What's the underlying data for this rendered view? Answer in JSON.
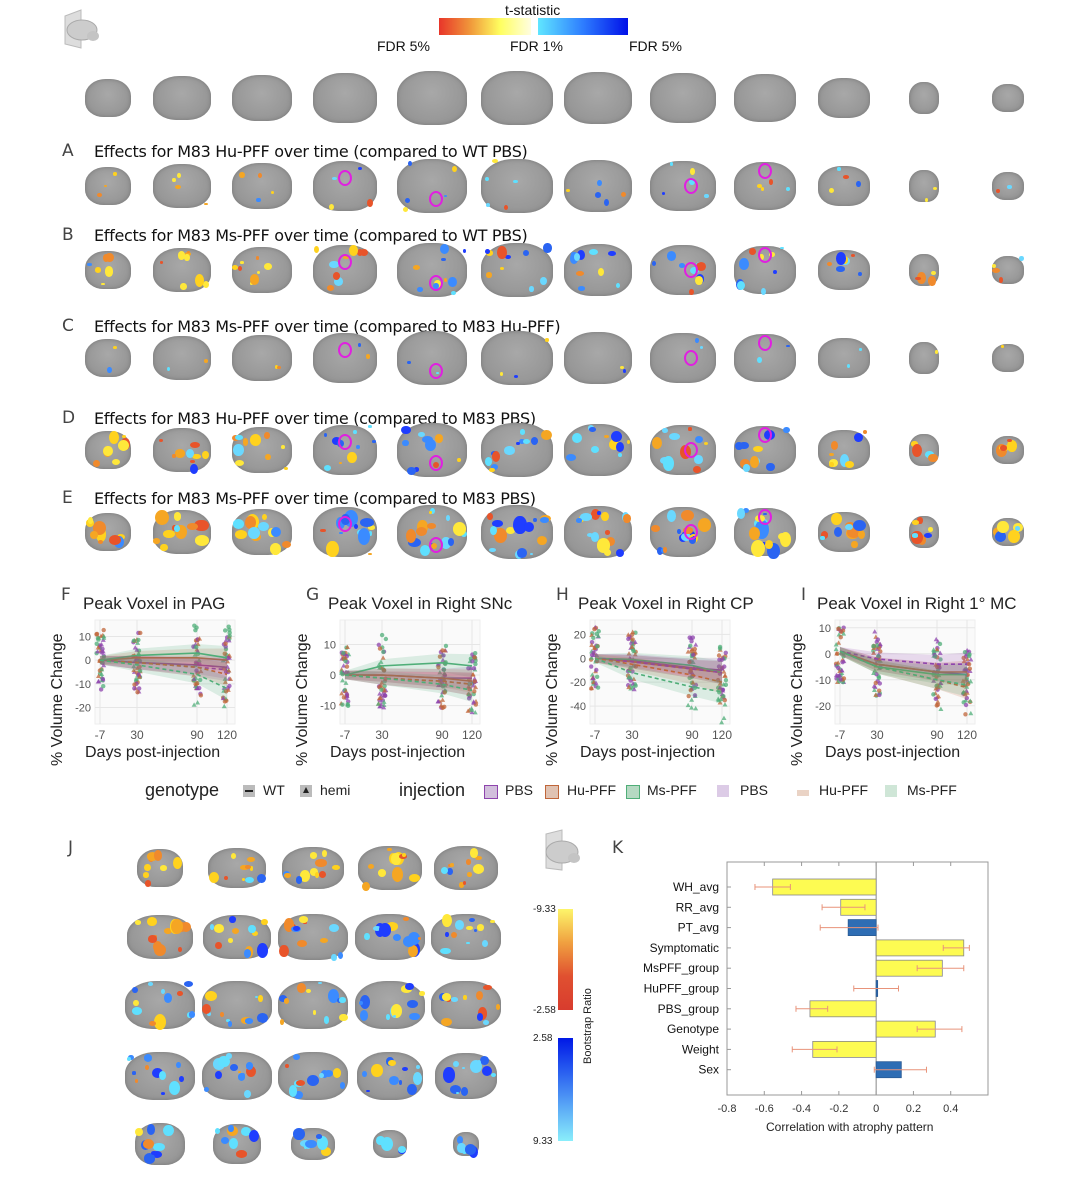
{
  "header": {
    "colorbar_title": "t-statistic",
    "labels": [
      "FDR 5%",
      "FDR 1%",
      "FDR 5%"
    ],
    "colors": {
      "warm_start": "#e8352a",
      "warm_end": "#ffff60",
      "cool_start": "#60e6ff",
      "cool_end": "#0010e8"
    }
  },
  "rows": [
    {
      "letter": "A",
      "title": "Effects for M83 Hu-PFF over time (compared to WT PBS)",
      "density": 0.3
    },
    {
      "letter": "B",
      "title": "Effects for M83 Ms-PFF over time (compared to WT PBS)",
      "density": 0.6
    },
    {
      "letter": "C",
      "title": "Effects for M83 Ms-PFF over time (compared to M83 Hu-PFF)",
      "density": 0.15
    },
    {
      "letter": "D",
      "title": "Effects for M83 Hu-PFF over time (compared to M83 PBS)",
      "density": 0.7
    },
    {
      "letter": "E",
      "title": "Effects for M83 Ms-PFF over time (compared to M83 PBS)",
      "density": 0.95
    }
  ],
  "chart_data": [
    {
      "type": "line",
      "letter": "F",
      "title": "Peak Voxel in PAG",
      "xlabel": "Days post-injection",
      "ylabel": "% Volume Change",
      "x": [
        -7,
        30,
        90,
        120
      ],
      "xticks": [
        "-7",
        "30",
        "90",
        "120"
      ],
      "yticks": [
        10,
        0,
        -10,
        -20
      ],
      "ylim": [
        -27,
        17
      ],
      "series": [
        {
          "name": "PBS WT",
          "values": [
            0,
            -1,
            -2,
            -3
          ]
        },
        {
          "name": "Hu-PFF WT",
          "values": [
            0,
            1,
            1,
            0
          ]
        },
        {
          "name": "Ms-PFF WT",
          "values": [
            0,
            2,
            3,
            1
          ]
        },
        {
          "name": "PBS hemi",
          "values": [
            0,
            -1,
            -3,
            -4
          ]
        },
        {
          "name": "Hu-PFF hemi",
          "values": [
            0,
            -1,
            -3,
            -6
          ]
        },
        {
          "name": "Ms-PFF hemi",
          "values": [
            0,
            -2,
            -6,
            -12
          ]
        }
      ]
    },
    {
      "type": "line",
      "letter": "G",
      "title": "Peak Voxel in Right SNc",
      "xlabel": "Days post-injection",
      "ylabel": "% Volume Change",
      "x": [
        -7,
        30,
        90,
        120
      ],
      "xticks": [
        "-7",
        "30",
        "90",
        "120"
      ],
      "yticks": [
        10,
        0,
        -10
      ],
      "ylim": [
        -16,
        18
      ],
      "series": [
        {
          "name": "PBS WT",
          "values": [
            0,
            0,
            -1,
            -1
          ]
        },
        {
          "name": "Hu-PFF WT",
          "values": [
            0,
            0,
            -1,
            -2
          ]
        },
        {
          "name": "Ms-PFF WT",
          "values": [
            0,
            3,
            4,
            3
          ]
        },
        {
          "name": "PBS hemi",
          "values": [
            0,
            -1,
            -2,
            -3
          ]
        },
        {
          "name": "Hu-PFF hemi",
          "values": [
            0,
            -1,
            -2,
            -3
          ]
        },
        {
          "name": "Ms-PFF hemi",
          "values": [
            0,
            -1,
            -3,
            -5
          ]
        }
      ]
    },
    {
      "type": "line",
      "letter": "H",
      "title": "Peak Voxel in Right CP",
      "xlabel": "Days post-injection",
      "ylabel": "% Volume Change",
      "x": [
        -7,
        30,
        90,
        120
      ],
      "xticks": [
        "-7",
        "30",
        "90",
        "120"
      ],
      "yticks": [
        20,
        0,
        -20,
        -40
      ],
      "ylim": [
        -55,
        32
      ],
      "series": [
        {
          "name": "PBS WT",
          "values": [
            0,
            -2,
            -8,
            -10
          ]
        },
        {
          "name": "Hu-PFF WT",
          "values": [
            0,
            -3,
            -9,
            -12
          ]
        },
        {
          "name": "Ms-PFF WT",
          "values": [
            0,
            -1,
            -6,
            -12
          ]
        },
        {
          "name": "PBS hemi",
          "values": [
            0,
            -3,
            -9,
            -12
          ]
        },
        {
          "name": "Hu-PFF hemi",
          "values": [
            0,
            -5,
            -14,
            -20
          ]
        },
        {
          "name": "Ms-PFF hemi",
          "values": [
            0,
            -12,
            -24,
            -28
          ]
        }
      ]
    },
    {
      "type": "line",
      "letter": "I",
      "title": "Peak Voxel in Right 1° MC",
      "xlabel": "Days post-injection",
      "ylabel": "% Volume Change",
      "x": [
        -7,
        30,
        90,
        120
      ],
      "xticks": [
        "-7",
        "30",
        "90",
        "120"
      ],
      "yticks": [
        10,
        0,
        -10,
        -20
      ],
      "ylim": [
        -27,
        13
      ],
      "series": [
        {
          "name": "PBS WT",
          "values": [
            1,
            -4,
            -7,
            -8
          ]
        },
        {
          "name": "Hu-PFF WT",
          "values": [
            1,
            -4,
            -7,
            -7
          ]
        },
        {
          "name": "Ms-PFF WT",
          "values": [
            1,
            -5,
            -8,
            -8
          ]
        },
        {
          "name": "PBS hemi",
          "values": [
            1,
            -2,
            -4,
            -4
          ]
        },
        {
          "name": "Hu-PFF hemi",
          "values": [
            1,
            -5,
            -10,
            -13
          ]
        },
        {
          "name": "Ms-PFF hemi",
          "values": [
            1,
            -5,
            -10,
            -12
          ]
        }
      ]
    },
    {
      "type": "bar",
      "letter": "K",
      "orientation": "horizontal",
      "xlabel": "Correlation with atrophy pattern",
      "xlim": [
        -0.8,
        0.6
      ],
      "xticks": [
        "-0.8",
        "-0.6",
        "-0.4",
        "-0.2",
        "0",
        "0.2",
        "0.4"
      ],
      "categories": [
        "WH_avg",
        "RR_avg",
        "PT_avg",
        "Symptomatic",
        "MsPFF_group",
        "HuPFF_group",
        "PBS_group",
        "Genotype",
        "Weight",
        "Sex"
      ],
      "values": [
        -0.555,
        -0.19,
        -0.15,
        0.47,
        0.355,
        0.005,
        -0.355,
        0.317,
        -0.34,
        0.135
      ],
      "err_low": [
        -0.65,
        -0.29,
        -0.3,
        0.36,
        0.22,
        -0.12,
        -0.43,
        0.22,
        -0.45,
        -0.01
      ],
      "err_high": [
        -0.46,
        -0.06,
        0.01,
        0.5,
        0.47,
        0.12,
        -0.26,
        0.46,
        -0.21,
        0.27
      ],
      "significant": [
        true,
        true,
        false,
        true,
        true,
        false,
        true,
        true,
        true,
        false
      ]
    }
  ],
  "legend": {
    "genotype_title": "genotype",
    "genotype_items": [
      "WT",
      "hemi"
    ],
    "injection_title": "injection",
    "injection_items": [
      "PBS",
      "Hu-PFF",
      "Ms-PFF",
      "PBS",
      "Hu-PFF",
      "Ms-PFF"
    ],
    "colors": {
      "PBS": "#8e44ad",
      "Hu-PFF": "#c0663a",
      "Ms-PFF": "#4fae78"
    }
  },
  "panel_j": {
    "letter": "J",
    "colorbar_title": "Bootstrap Ratio",
    "warm_labels": [
      "-9.33",
      "-2.58"
    ],
    "cool_labels": [
      "2.58",
      "9.33"
    ]
  }
}
